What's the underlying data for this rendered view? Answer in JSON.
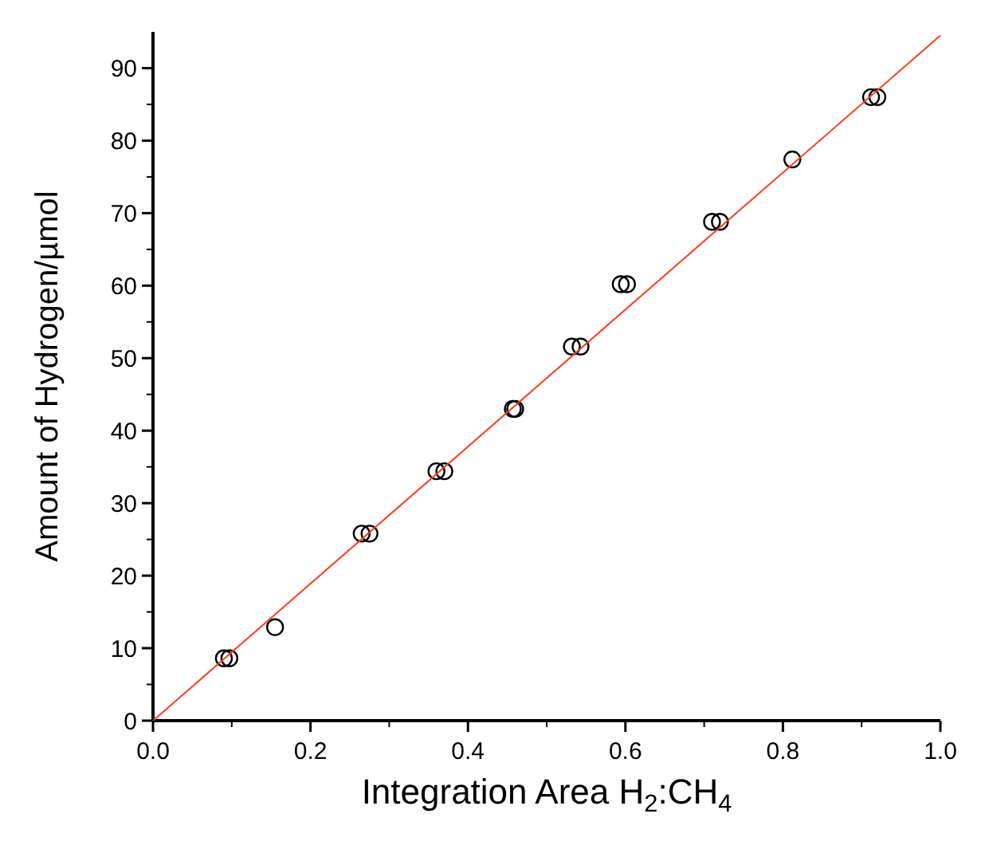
{
  "chart_data": {
    "type": "scatter",
    "xlabel": "Integration Area H$_{2}$:CH$_{4}$",
    "ylabel": "Amount of Hydrogen/µmol",
    "xlim": [
      0,
      1
    ],
    "ylim": [
      0,
      95
    ],
    "xticks": [
      {
        "value": 0,
        "label": "0.0"
      },
      0.2,
      0.4,
      0.6,
      0.8,
      {
        "value": 1,
        "label": "1.0"
      }
    ],
    "yticks": [
      0,
      10,
      20,
      30,
      40,
      50,
      60,
      70,
      80,
      90
    ],
    "grid": false,
    "series": [
      {
        "color": "#000000",
        "marker": "circle",
        "x": [
          0.09,
          0.097,
          0.155,
          0.265,
          0.275,
          0.36,
          0.37,
          0.457,
          0.46,
          0.532,
          0.543,
          0.594,
          0.602,
          0.71,
          0.72,
          0.812,
          0.912,
          0.92
        ],
        "values": [
          8.6,
          8.6,
          12.9,
          25.8,
          25.8,
          34.4,
          34.4,
          43,
          43,
          51.6,
          51.6,
          60.2,
          60.2,
          68.8,
          68.8,
          77.4,
          86,
          86
        ]
      },
      {
        "type": "line",
        "color": "#ff3c1e",
        "marker": "none",
        "line_style": "solid",
        "x": [
          0,
          1
        ],
        "values": [
          0,
          94.5
        ]
      }
    ]
  }
}
